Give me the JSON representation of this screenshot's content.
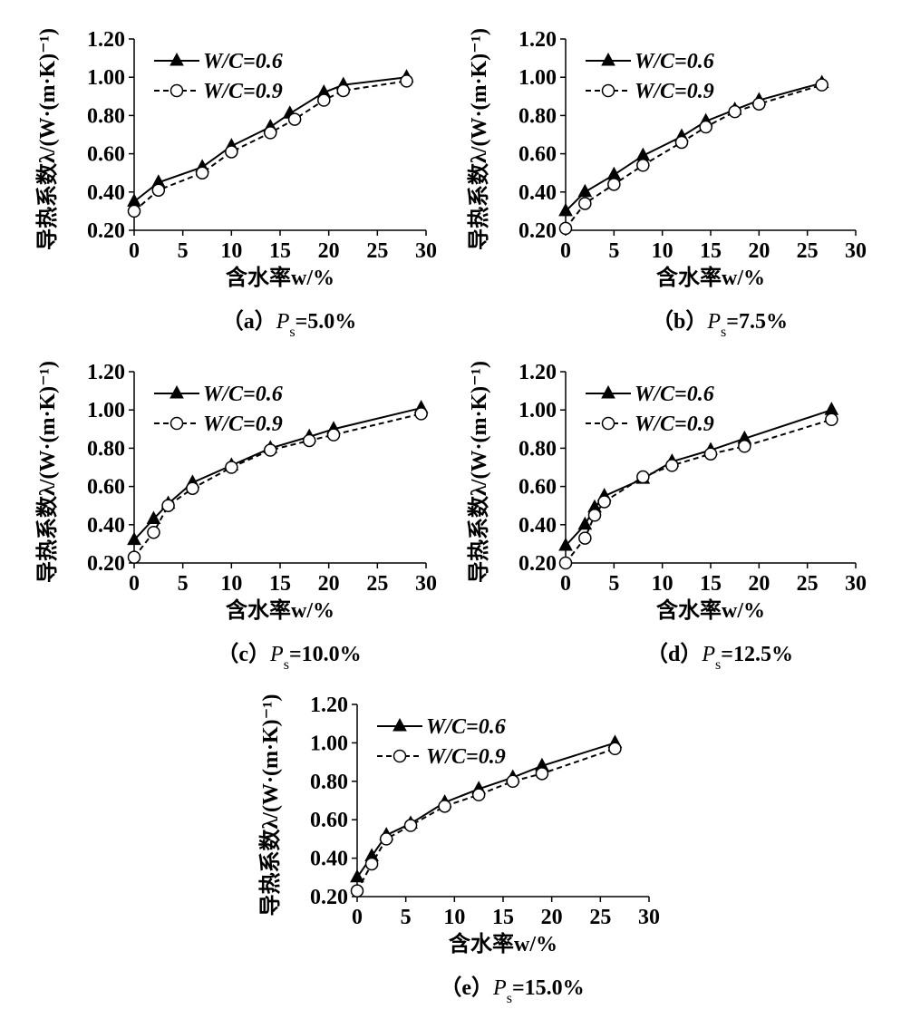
{
  "chart_data": [
    {
      "type": "line",
      "title_parts": [
        "（a）",
        "P",
        "s",
        "=5.0%"
      ],
      "x_label": "含水率w/%",
      "y_label": "导热系数λ/(W·(m·K)⁻¹)",
      "x": [
        0,
        2.5,
        7,
        10,
        14,
        16,
        19.5,
        21.5,
        28
      ],
      "x2": [
        0,
        2.5,
        7,
        10,
        14,
        16.5,
        19.5,
        21.5,
        28
      ],
      "series": [
        {
          "name": "W/C=0.6",
          "color": "#000000",
          "line_style": "solid",
          "marker": "triangle",
          "values": [
            0.35,
            0.45,
            0.53,
            0.64,
            0.74,
            0.81,
            0.92,
            0.96,
            1.0
          ]
        },
        {
          "name": "W/C=0.9",
          "color": "#000000",
          "line_style": "dashed",
          "marker": "circle",
          "values": [
            0.3,
            0.41,
            0.5,
            0.61,
            0.71,
            0.78,
            0.88,
            0.93,
            0.98
          ]
        }
      ],
      "xlim": [
        0,
        30
      ],
      "xticks": [
        0,
        5,
        10,
        15,
        20,
        25,
        30
      ],
      "ylim": [
        0.2,
        1.2
      ],
      "yticks": [
        {
          "value": 0.2,
          "label": "0.20"
        },
        {
          "value": 0.4,
          "label": "0.40"
        },
        {
          "value": 0.6,
          "label": "0.60"
        },
        {
          "value": 0.8,
          "label": "0.80"
        },
        {
          "value": 1.0,
          "label": "1.00"
        },
        {
          "value": 1.2,
          "label": "1.20"
        }
      ],
      "legend": "upper left"
    },
    {
      "type": "line",
      "title_parts": [
        "（b）",
        "P",
        "s",
        "=7.5%"
      ],
      "x_label": "含水率w/%",
      "y_label": "导热系数λ/(W·(m·K)⁻¹)",
      "x": [
        0,
        2,
        5,
        8,
        12,
        14.5,
        17.5,
        20,
        26.5
      ],
      "series": [
        {
          "name": "W/C=0.6",
          "color": "#000000",
          "line_style": "solid",
          "marker": "triangle",
          "values": [
            0.3,
            0.4,
            0.49,
            0.59,
            0.69,
            0.77,
            0.83,
            0.88,
            0.97
          ]
        },
        {
          "name": "W/C=0.9",
          "color": "#000000",
          "line_style": "dashed",
          "marker": "circle",
          "values": [
            0.21,
            0.34,
            0.44,
            0.54,
            0.66,
            0.74,
            0.82,
            0.86,
            0.96
          ]
        }
      ],
      "xlim": [
        0,
        30
      ],
      "xticks": [
        0,
        5,
        10,
        15,
        20,
        25,
        30
      ],
      "ylim": [
        0.2,
        1.2
      ],
      "yticks": [
        {
          "value": 0.2,
          "label": "0.20"
        },
        {
          "value": 0.4,
          "label": "0.40"
        },
        {
          "value": 0.6,
          "label": "0.60"
        },
        {
          "value": 0.8,
          "label": "0.80"
        },
        {
          "value": 1.0,
          "label": "1.00"
        },
        {
          "value": 1.2,
          "label": "1.20"
        }
      ],
      "legend": "upper left"
    },
    {
      "type": "line",
      "title_parts": [
        "（c）",
        "P",
        "s",
        "=10.0%"
      ],
      "x_label": "含水率w/%",
      "y_label": "导热系数λ/(W·(m·K)⁻¹)",
      "x": [
        0,
        2,
        3.5,
        6,
        10,
        14,
        18,
        20.5,
        29.5
      ],
      "series": [
        {
          "name": "W/C=0.6",
          "color": "#000000",
          "line_style": "solid",
          "marker": "triangle",
          "values": [
            0.32,
            0.43,
            0.51,
            0.62,
            0.71,
            0.8,
            0.86,
            0.9,
            1.01
          ]
        },
        {
          "name": "W/C=0.9",
          "color": "#000000",
          "line_style": "dashed",
          "marker": "circle",
          "values": [
            0.23,
            0.36,
            0.5,
            0.59,
            0.7,
            0.79,
            0.84,
            0.87,
            0.98
          ]
        }
      ],
      "xlim": [
        0,
        30
      ],
      "xticks": [
        0,
        5,
        10,
        15,
        20,
        25,
        30
      ],
      "ylim": [
        0.2,
        1.2
      ],
      "yticks": [
        {
          "value": 0.2,
          "label": "0.20"
        },
        {
          "value": 0.4,
          "label": "0.40"
        },
        {
          "value": 0.6,
          "label": "0.60"
        },
        {
          "value": 0.8,
          "label": "0.80"
        },
        {
          "value": 1.0,
          "label": "1.00"
        },
        {
          "value": 1.2,
          "label": "1.20"
        }
      ],
      "legend": "upper left"
    },
    {
      "type": "line",
      "title_parts": [
        "（d）",
        "P",
        "s",
        "=12.5%"
      ],
      "x_label": "含水率w/%",
      "y_label": "导热系数λ/(W·(m·K)⁻¹)",
      "x": [
        0,
        2,
        3,
        4,
        8,
        11,
        15,
        18.5,
        27.5
      ],
      "series": [
        {
          "name": "W/C=0.6",
          "color": "#000000",
          "line_style": "solid",
          "marker": "triangle",
          "values": [
            0.29,
            0.4,
            0.49,
            0.55,
            0.64,
            0.73,
            0.79,
            0.85,
            1.0
          ]
        },
        {
          "name": "W/C=0.9",
          "color": "#000000",
          "line_style": "dashed",
          "marker": "circle",
          "values": [
            0.2,
            0.33,
            0.45,
            0.52,
            0.65,
            0.71,
            0.77,
            0.81,
            0.95
          ]
        }
      ],
      "xlim": [
        0,
        30
      ],
      "xticks": [
        0,
        5,
        10,
        15,
        20,
        25,
        30
      ],
      "ylim": [
        0.2,
        1.2
      ],
      "yticks": [
        {
          "value": 0.2,
          "label": "0.20"
        },
        {
          "value": 0.4,
          "label": "0.40"
        },
        {
          "value": 0.6,
          "label": "0.60"
        },
        {
          "value": 0.8,
          "label": "0.80"
        },
        {
          "value": 1.0,
          "label": "1.00"
        },
        {
          "value": 1.2,
          "label": "1.20"
        }
      ],
      "legend": "upper left"
    },
    {
      "type": "line",
      "title_parts": [
        "（e）",
        "P",
        "s",
        "=15.0%"
      ],
      "x_label": "含水率w/%",
      "y_label": "导热系数λ/(W·(m·K)⁻¹)",
      "x": [
        0,
        1.5,
        3,
        5.5,
        9,
        12.5,
        16,
        19,
        26.5
      ],
      "series": [
        {
          "name": "W/C=0.6",
          "color": "#000000",
          "line_style": "solid",
          "marker": "triangle",
          "values": [
            0.3,
            0.41,
            0.52,
            0.58,
            0.69,
            0.76,
            0.82,
            0.88,
            1.0
          ]
        },
        {
          "name": "W/C=0.9",
          "color": "#000000",
          "line_style": "dashed",
          "marker": "circle",
          "values": [
            0.23,
            0.37,
            0.5,
            0.57,
            0.67,
            0.73,
            0.8,
            0.84,
            0.97
          ]
        }
      ],
      "xlim": [
        0,
        30
      ],
      "xticks": [
        0,
        5,
        10,
        15,
        20,
        25,
        30
      ],
      "ylim": [
        0.2,
        1.2
      ],
      "yticks": [
        {
          "value": 0.2,
          "label": "0.20"
        },
        {
          "value": 0.4,
          "label": "0.40"
        },
        {
          "value": 0.6,
          "label": "0.60"
        },
        {
          "value": 0.8,
          "label": "0.80"
        },
        {
          "value": 1.0,
          "label": "1.00"
        },
        {
          "value": 1.2,
          "label": "1.20"
        }
      ],
      "legend": "upper left"
    }
  ]
}
